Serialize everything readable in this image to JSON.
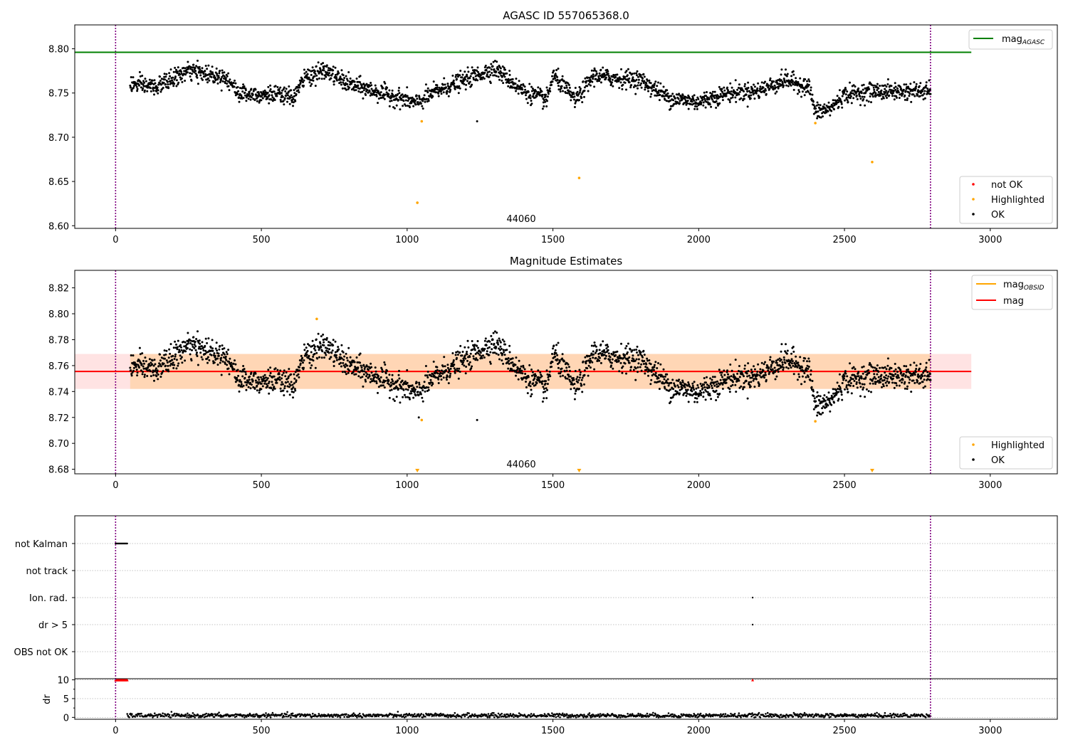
{
  "figure": {
    "panel1_title": "AGASC ID 557065368.0",
    "panel2_title": "Magnitude Estimates",
    "obsid_label": "44060"
  },
  "chart_data": [
    {
      "type": "scatter",
      "title": "AGASC ID 557065368.0",
      "xlim": [
        -140,
        3230
      ],
      "ylim": [
        8.597,
        8.827
      ],
      "x_ticks": [
        0,
        500,
        1000,
        1500,
        2000,
        2500,
        3000
      ],
      "y_ticks": [
        8.6,
        8.65,
        8.7,
        8.75,
        8.8
      ],
      "y_tick_labels": [
        "8.60",
        "8.65",
        "8.70",
        "8.75",
        "8.80"
      ],
      "vlines": [
        0,
        2795
      ],
      "hline": {
        "name": "mag_AGASC",
        "value": 8.796,
        "x_range": [
          -140,
          2935
        ],
        "color": "#008000"
      },
      "legend_upper": {
        "placement": "upper-right",
        "entries": [
          {
            "label": "mag",
            "sub": "AGASC",
            "color": "#008000"
          }
        ]
      },
      "legend_lower": {
        "placement": "lower-right",
        "entries": [
          {
            "label": "not OK",
            "color": "#ff0000"
          },
          {
            "label": "Highlighted",
            "color": "#ffa500"
          },
          {
            "label": "OK",
            "color": "#000000"
          }
        ]
      },
      "highlighted": [
        [
          1035,
          8.626
        ],
        [
          1050,
          8.718
        ],
        [
          1590,
          8.654
        ],
        [
          2400,
          8.716
        ],
        [
          2595,
          8.672
        ]
      ],
      "annotation": {
        "text": "44060",
        "x": 1395,
        "y": 8.605
      },
      "ok_series_shape": {
        "x_start": 50,
        "x_end": 2795,
        "n_points": 2400,
        "noise": 0.009,
        "baseline_x": [
          50,
          140,
          250,
          380,
          420,
          550,
          610,
          650,
          720,
          800,
          1000,
          1030,
          1100,
          1200,
          1300,
          1400,
          1480,
          1500,
          1580,
          1640,
          1700,
          1800,
          1900,
          2000,
          2100,
          2200,
          2300,
          2380,
          2400,
          2450,
          2500,
          2600,
          2795
        ],
        "baseline_y": [
          8.76,
          8.757,
          8.775,
          8.768,
          8.75,
          8.748,
          8.745,
          8.768,
          8.775,
          8.76,
          8.742,
          8.738,
          8.752,
          8.765,
          8.778,
          8.752,
          8.742,
          8.77,
          8.742,
          8.77,
          8.767,
          8.765,
          8.744,
          8.74,
          8.75,
          8.752,
          8.765,
          8.756,
          8.728,
          8.732,
          8.748,
          8.752,
          8.752
        ]
      }
    },
    {
      "type": "scatter",
      "title": "Magnitude Estimates",
      "xlim": [
        -140,
        3230
      ],
      "ylim": [
        8.6765,
        8.8335
      ],
      "x_ticks": [
        0,
        500,
        1000,
        1500,
        2000,
        2500,
        3000
      ],
      "y_ticks": [
        8.68,
        8.7,
        8.72,
        8.74,
        8.76,
        8.78,
        8.8,
        8.82
      ],
      "y_tick_labels": [
        "8.68",
        "8.70",
        "8.72",
        "8.74",
        "8.76",
        "8.78",
        "8.80",
        "8.82"
      ],
      "vlines": [
        0,
        2795
      ],
      "mag_line": {
        "name": "mag",
        "value": 8.7555,
        "x_range": [
          -140,
          2935
        ],
        "color": "#ff0000"
      },
      "mag_band": {
        "low": 8.742,
        "high": 8.769,
        "x_range": [
          -140,
          2935
        ]
      },
      "obsid_band": {
        "low": 8.742,
        "high": 8.769,
        "x_range": [
          50,
          2795
        ]
      },
      "legend_upper": {
        "placement": "upper-right",
        "entries": [
          {
            "label": "mag",
            "sub": "OBSID",
            "color": "#ffa500"
          },
          {
            "label": "mag",
            "color": "#ff0000"
          }
        ]
      },
      "legend_lower": {
        "placement": "lower-right",
        "entries": [
          {
            "label": "Highlighted",
            "color": "#ffa500"
          },
          {
            "label": "OK",
            "color": "#000000"
          }
        ]
      },
      "highlighted": [
        [
          1050,
          8.718
        ],
        [
          2400,
          8.717
        ],
        [
          690,
          8.796
        ]
      ],
      "off_scale_markers_x": [
        1035,
        1590,
        2595
      ],
      "annotation": {
        "text": "44060",
        "x": 1395,
        "y": 8.6815
      }
    },
    {
      "type": "scatter",
      "title": "",
      "xlim": [
        -140,
        3230
      ],
      "x_ticks": [
        0,
        500,
        1000,
        1500,
        2000,
        2500,
        3000
      ],
      "vlines": [
        0,
        2795
      ],
      "flag_rows": [
        "not Kalman",
        "not track",
        "Ion. rad.",
        "dr > 5",
        "OBS not OK"
      ],
      "flag_points": {
        "not Kalman": {
          "x_range": [
            0,
            40
          ]
        },
        "Ion. rad.": {
          "x": [
            2185
          ]
        },
        "dr > 5": {
          "x": [
            2185
          ]
        }
      },
      "dr": {
        "ylabel": "dr",
        "y_ticks": [
          0,
          5,
          10
        ],
        "ylim": [
          -0.5,
          10.3
        ],
        "capped_red_x_range": [
          0,
          40
        ],
        "capped_red_extra_x": [
          2185
        ],
        "cap_value": 10,
        "baseline_x_range": [
          40,
          2795
        ],
        "baseline_mean": 0.5,
        "baseline_noise": 0.35
      }
    }
  ]
}
